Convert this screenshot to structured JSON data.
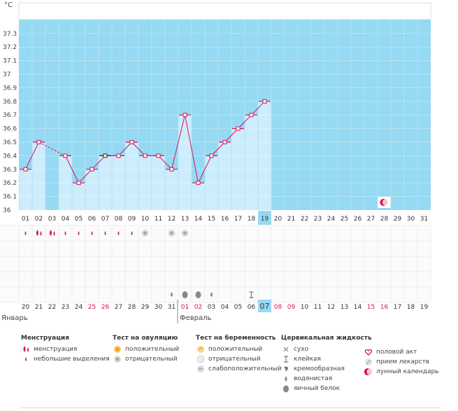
{
  "chart_data": {
    "type": "line",
    "title": "",
    "unit_label": "°C",
    "ylabel": "°C",
    "xlabel": "",
    "ylim": [
      36.0,
      37.35
    ],
    "y_ticks": [
      "36",
      "36.1",
      "36.2",
      "36.3",
      "36.4",
      "36.5",
      "36.6",
      "36.7",
      "36.8",
      "36.9",
      "37",
      "37.1",
      "37.2",
      "37.3"
    ],
    "cycle_days": [
      "01",
      "02",
      "03",
      "04",
      "05",
      "06",
      "07",
      "08",
      "09",
      "10",
      "11",
      "12",
      "13",
      "14",
      "15",
      "16",
      "17",
      "18",
      "19",
      "20",
      "21",
      "22",
      "23",
      "24",
      "25",
      "26",
      "27",
      "28",
      "29",
      "30",
      "31"
    ],
    "temperatures": [
      36.3,
      36.5,
      null,
      36.4,
      36.2,
      36.3,
      36.4,
      36.4,
      36.5,
      36.4,
      36.4,
      36.3,
      36.7,
      36.2,
      36.4,
      36.5,
      36.6,
      36.7,
      36.8,
      null,
      null,
      null,
      null,
      null,
      null,
      null,
      null,
      null,
      null,
      null,
      null
    ],
    "interpolated_segment": [
      "02",
      "04"
    ],
    "highlighted_point": "07",
    "current_day": "19",
    "moon_day": "28",
    "menstruation": [
      {
        "day": "01",
        "type": "small"
      },
      {
        "day": "02",
        "type": "heavy"
      },
      {
        "day": "03",
        "type": "heavy"
      },
      {
        "day": "04",
        "type": "small"
      },
      {
        "day": "05",
        "type": "small"
      },
      {
        "day": "06",
        "type": "small"
      },
      {
        "day": "07",
        "type": "small"
      },
      {
        "day": "08",
        "type": "small"
      },
      {
        "day": "09",
        "type": "small"
      }
    ],
    "ovulation_tests": [
      {
        "day": "10",
        "result": "negative"
      },
      {
        "day": "12",
        "result": "negative"
      },
      {
        "day": "13",
        "result": "negative"
      }
    ],
    "cervical_fluid": [
      {
        "day": "12",
        "type": "watery"
      },
      {
        "day": "13",
        "type": "eggwhite"
      },
      {
        "day": "14",
        "type": "eggwhite"
      },
      {
        "day": "15",
        "type": "watery"
      },
      {
        "day": "18",
        "type": "sticky"
      }
    ],
    "calendar_dates": [
      "20",
      "21",
      "22",
      "23",
      "24",
      "25",
      "26",
      "27",
      "28",
      "29",
      "30",
      "31",
      "01",
      "02",
      "03",
      "04",
      "05",
      "06",
      "07",
      "08",
      "09",
      "10",
      "11",
      "12",
      "13",
      "14",
      "15",
      "16",
      "17",
      "18",
      "19"
    ],
    "weekend_dates_idx": [
      5,
      6,
      12,
      13,
      19,
      20,
      26,
      27
    ],
    "today_date_idx": 18,
    "month_labels": [
      {
        "idx": 0,
        "label": "Январь"
      },
      {
        "idx": 12,
        "label": "Февраль"
      }
    ]
  },
  "colors": {
    "sky": "#96d9f3",
    "bar": "#cdedfc",
    "line": "#d4145a",
    "marker": "#d4145a",
    "highlight": "#222222",
    "grid": "#ffffff",
    "today": "#96d9f3",
    "weekend": "#d4145a",
    "drop": "#d4145a",
    "fluid": "#888888"
  },
  "legend": {
    "menstruation": {
      "title": "Менструация",
      "items": [
        {
          "icon": "heavy-drops-icon",
          "label": "менструация"
        },
        {
          "icon": "small-drop-icon",
          "label": "небольшие выделения"
        }
      ]
    },
    "ovulation": {
      "title": "Тест на овуляцию",
      "items": [
        {
          "icon": "ovulation-positive-icon",
          "label": "положительный"
        },
        {
          "icon": "ovulation-negative-icon",
          "label": "отрицательный"
        }
      ]
    },
    "pregnancy": {
      "title": "Тест на беременность",
      "items": [
        {
          "icon": "pregnancy-positive-icon",
          "label": "положительный"
        },
        {
          "icon": "pregnancy-negative-icon",
          "label": "отрицательный"
        },
        {
          "icon": "pregnancy-weak-icon",
          "label": "слабоположительный"
        }
      ]
    },
    "cervical": {
      "title": "Цервикальная жидкость",
      "items": [
        {
          "icon": "dry-icon",
          "label": "сухо"
        },
        {
          "icon": "sticky-icon",
          "label": "клейкая"
        },
        {
          "icon": "creamy-icon",
          "label": "кремообразная"
        },
        {
          "icon": "watery-icon",
          "label": "водянистая"
        },
        {
          "icon": "eggwhite-icon",
          "label": "яичный белок"
        }
      ]
    },
    "other": {
      "items": [
        {
          "icon": "heart-icon",
          "label": "половой акт"
        },
        {
          "icon": "pill-icon",
          "label": "прием лекарств"
        },
        {
          "icon": "moon-icon",
          "label": "лунный календарь"
        }
      ]
    }
  }
}
